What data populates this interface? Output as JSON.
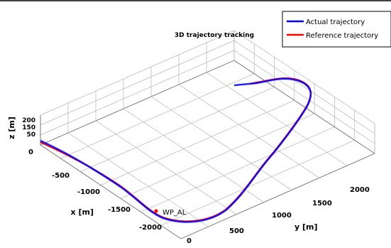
{
  "chart_data": {
    "type": "line",
    "title": "3D trajectory tracking",
    "xlabel": "x [m]",
    "ylabel": "y [m]",
    "zlabel": "z [m]",
    "x_ticks": [
      "0",
      "-500",
      "-1000",
      "-1500",
      "-2000"
    ],
    "y_ticks": [
      "0",
      "500",
      "1000",
      "1500",
      "2000"
    ],
    "z_ticks": [
      "0",
      "50",
      "150",
      "200"
    ],
    "grid": true,
    "legend_position": "top-right",
    "annotation": "WP_AL",
    "series": [
      {
        "name": "Actual trajectory",
        "color": "#0000ff"
      },
      {
        "name": "Reference trajectory",
        "color": "#ff0000"
      }
    ]
  }
}
